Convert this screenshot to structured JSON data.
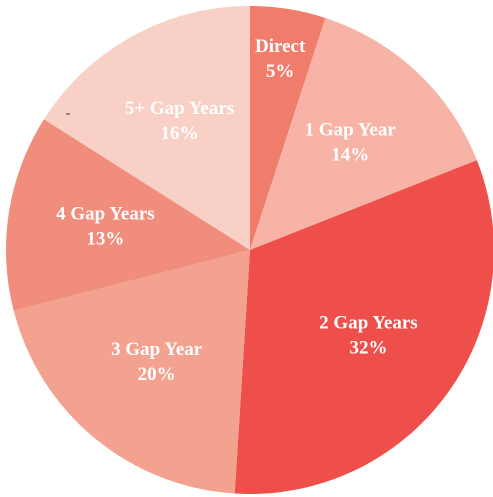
{
  "chart_data": {
    "type": "pie",
    "categories": [
      "Direct",
      "1 Gap Year",
      "2 Gap Years",
      "3 Gap Year",
      "4 Gap Years",
      "5+ Gap Years"
    ],
    "values": [
      5,
      14,
      32,
      20,
      13,
      16
    ],
    "value_labels": [
      "5%",
      "14%",
      "32%",
      "20%",
      "13%",
      "16%"
    ],
    "colors": [
      "#f07d6c",
      "#f7b4a6",
      "#ef4f4a",
      "#f3a290",
      "#f08d7c",
      "#f9d0c6"
    ],
    "annotation": "-"
  }
}
